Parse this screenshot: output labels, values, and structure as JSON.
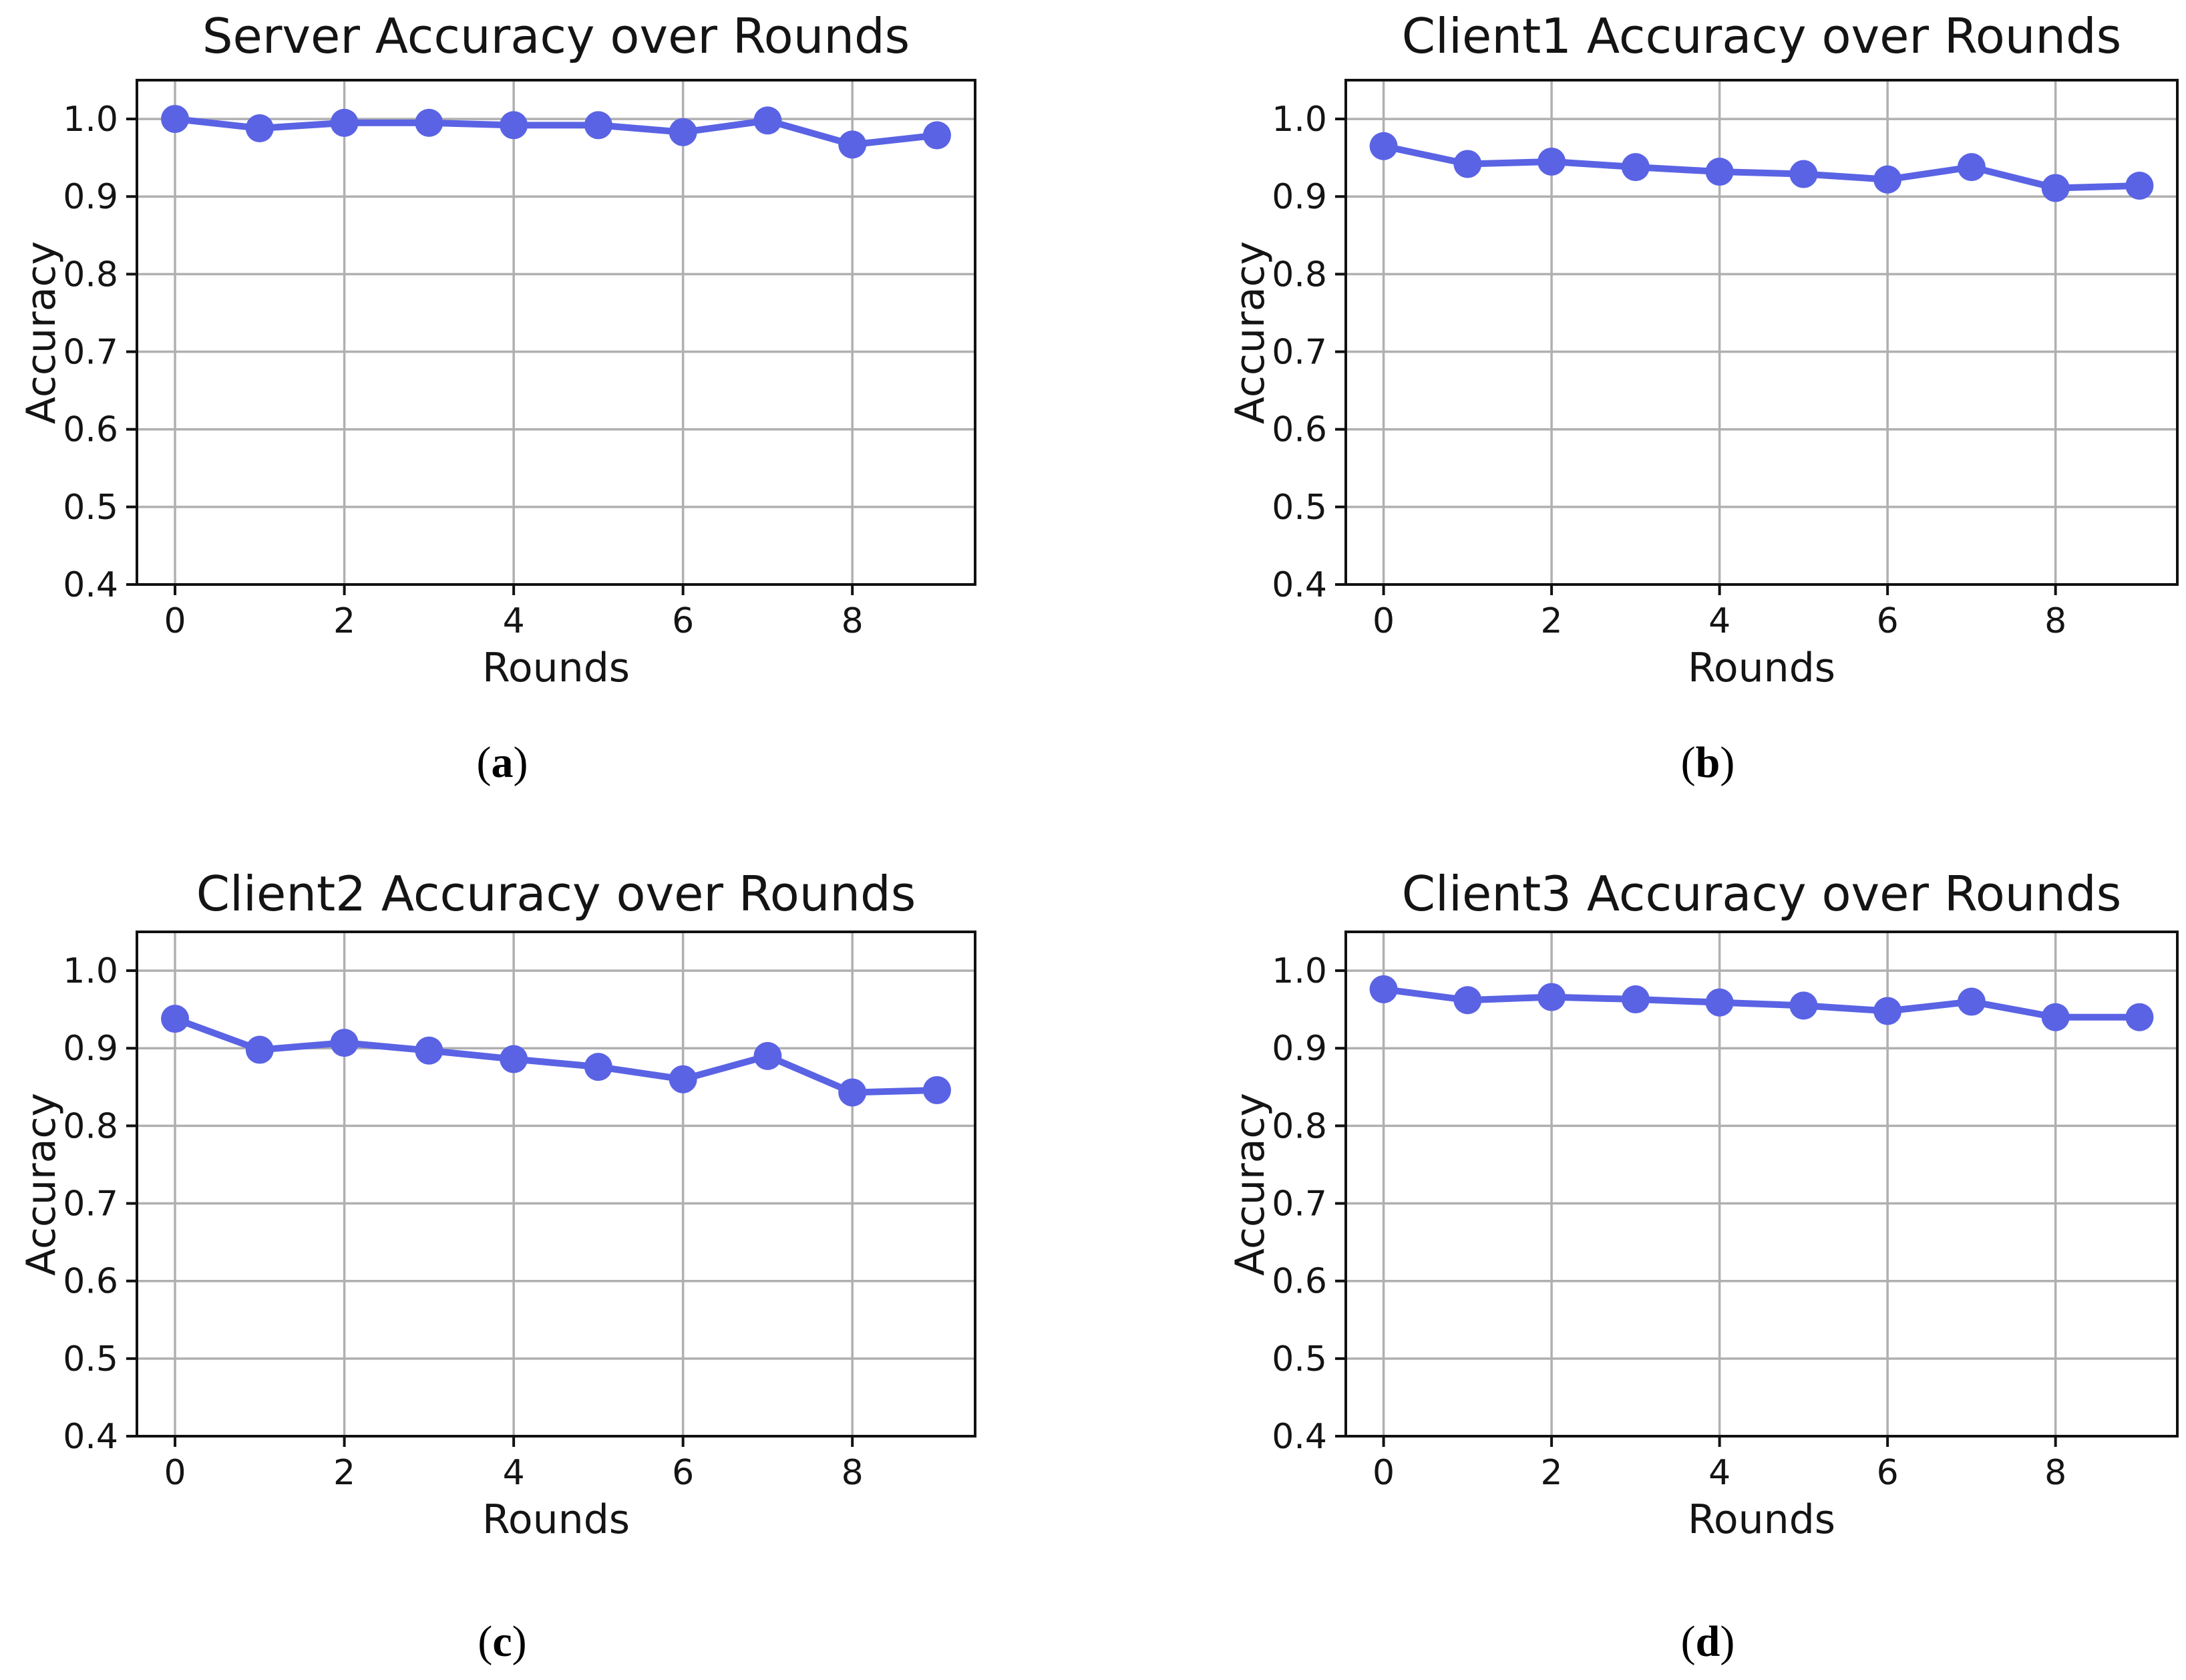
{
  "figure": {
    "background": "#ffffff"
  },
  "style": {
    "line_color": "#5A63E4",
    "grid_color": "#b0b0b0",
    "spine_color": "#111111",
    "text_color": "#141414"
  },
  "axis": {
    "xlabel": "Rounds",
    "ylabel": "Accuracy",
    "xtick_labels": [
      "0",
      "2",
      "4",
      "6",
      "8"
    ],
    "xtick_values": [
      0,
      2,
      4,
      6,
      8
    ],
    "ytick_labels": [
      "1.0",
      "0.9",
      "0.8",
      "0.7",
      "0.6",
      "0.5",
      "0.4"
    ],
    "ytick_values": [
      1.0,
      0.9,
      0.8,
      0.7,
      0.6,
      0.5,
      0.4
    ],
    "xlim": [
      -0.45,
      9.45
    ],
    "ylim": [
      0.4,
      1.05
    ],
    "grid": true
  },
  "chart_data": [
    {
      "type": "line",
      "title": "Server Accuracy over Rounds",
      "caption_pre": "(",
      "caption_letter": "a",
      "caption_post": ")",
      "xlabel": "Rounds",
      "ylabel": "Accuracy",
      "x": [
        0,
        1,
        2,
        3,
        4,
        5,
        6,
        7,
        8,
        9
      ],
      "y": [
        1.0,
        0.988,
        0.995,
        0.995,
        0.992,
        0.992,
        0.983,
        0.998,
        0.967,
        0.979
      ],
      "xlim": [
        -0.45,
        9.45
      ],
      "ylim": [
        0.4,
        1.05
      ],
      "marker": "o",
      "legend": "none"
    },
    {
      "type": "line",
      "title": "Client1 Accuracy over Rounds",
      "caption_pre": "(",
      "caption_letter": "b",
      "caption_post": ")",
      "xlabel": "Rounds",
      "ylabel": "Accuracy",
      "x": [
        0,
        1,
        2,
        3,
        4,
        5,
        6,
        7,
        8,
        9
      ],
      "y": [
        0.965,
        0.942,
        0.945,
        0.938,
        0.932,
        0.929,
        0.922,
        0.938,
        0.911,
        0.914
      ],
      "xlim": [
        -0.45,
        9.45
      ],
      "ylim": [
        0.4,
        1.05
      ],
      "marker": "o",
      "legend": "none"
    },
    {
      "type": "line",
      "title": "Client2 Accuracy over Rounds",
      "caption_pre": "(",
      "caption_letter": "c",
      "caption_post": ")",
      "xlabel": "Rounds",
      "ylabel": "Accuracy",
      "x": [
        0,
        1,
        2,
        3,
        4,
        5,
        6,
        7,
        8,
        9
      ],
      "y": [
        0.938,
        0.898,
        0.907,
        0.897,
        0.886,
        0.876,
        0.86,
        0.89,
        0.843,
        0.846
      ],
      "xlim": [
        -0.45,
        9.45
      ],
      "ylim": [
        0.4,
        1.05
      ],
      "marker": "o",
      "legend": "none"
    },
    {
      "type": "line",
      "title": "Client3 Accuracy over Rounds",
      "caption_pre": "(",
      "caption_letter": "d",
      "caption_post": ")",
      "xlabel": "Rounds",
      "ylabel": "Accuracy",
      "x": [
        0,
        1,
        2,
        3,
        4,
        5,
        6,
        7,
        8,
        9
      ],
      "y": [
        0.976,
        0.962,
        0.966,
        0.963,
        0.959,
        0.955,
        0.948,
        0.96,
        0.94,
        0.94
      ],
      "xlim": [
        -0.45,
        9.45
      ],
      "ylim": [
        0.4,
        1.05
      ],
      "marker": "o",
      "legend": "none"
    }
  ]
}
